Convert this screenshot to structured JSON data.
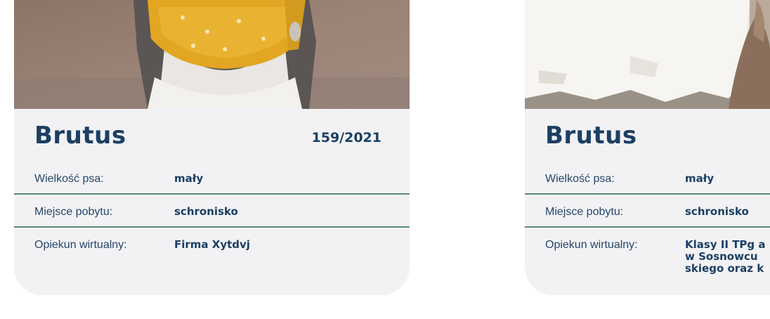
{
  "cards": [
    {
      "name": "Brutus",
      "number": "159/2021",
      "rows": [
        {
          "label": "Wielkość psa:",
          "value": "mały"
        },
        {
          "label": "Miejsce pobytu:",
          "value": "schronisko"
        },
        {
          "label": "Opiekun wirtualny:",
          "value": "Firma Xytdvj"
        }
      ]
    },
    {
      "name": "Brutus",
      "rows": [
        {
          "label": "Wielkość psa:",
          "value": "mały"
        },
        {
          "label": "Miejsce pobytu:",
          "value": "schronisko"
        },
        {
          "label": "Opiekun wirtualny:",
          "value_lines": [
            "Klasy II TPg a",
            "w Sosnowcu",
            "skiego oraz k"
          ]
        }
      ]
    }
  ],
  "colors": {
    "heading": "#1c3f63",
    "label": "#26466a",
    "divider": "#5a8a74",
    "card_bg": "#f2f2f4"
  }
}
